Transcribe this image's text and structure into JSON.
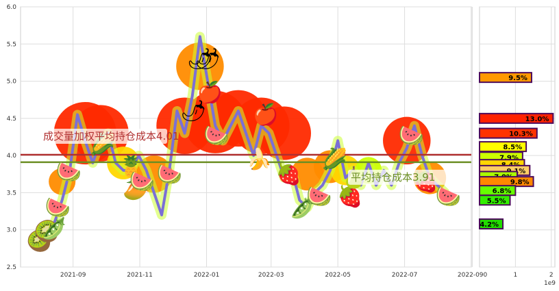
{
  "chart_data": [
    {
      "type": "line",
      "title": "",
      "xlabel": "",
      "ylabel": "",
      "ylim": [
        2.5,
        6.0
      ],
      "y_ticks": [
        "2.5",
        "3.0",
        "3.5",
        "4.0",
        "4.5",
        "5.0",
        "5.5",
        "6.0"
      ],
      "x_ticks": [
        "2021-09",
        "2021-11",
        "2022-01",
        "2022-03",
        "2022-05",
        "2022-07",
        "2022-09"
      ],
      "x_tick_display": [
        "2021-09",
        "2021-11",
        "2022-01",
        "2022-03",
        "2022-05",
        "2022-07",
        "2022-090"
      ],
      "xlim": [
        "2021-07-15",
        "2022-08-31"
      ],
      "grid": true,
      "line_color": "#7b6fd6",
      "price_series": {
        "x": [
          "2021-08-01",
          "2021-08-08",
          "2021-08-15",
          "2021-08-22",
          "2021-08-29",
          "2021-09-05",
          "2021-09-12",
          "2021-09-19",
          "2021-09-26",
          "2021-10-03",
          "2021-10-10",
          "2021-10-17",
          "2021-10-24",
          "2021-10-31",
          "2021-11-07",
          "2021-11-14",
          "2021-11-21",
          "2021-11-28",
          "2021-12-05",
          "2021-12-12",
          "2021-12-19",
          "2021-12-26",
          "2022-01-02",
          "2022-01-09",
          "2022-01-16",
          "2022-01-23",
          "2022-01-30",
          "2022-02-06",
          "2022-02-13",
          "2022-02-20",
          "2022-02-27",
          "2022-03-06",
          "2022-03-13",
          "2022-03-20",
          "2022-03-27",
          "2022-04-03",
          "2022-04-10",
          "2022-04-17",
          "2022-04-24",
          "2022-05-01",
          "2022-05-08",
          "2022-05-15",
          "2022-05-22",
          "2022-05-29",
          "2022-06-05",
          "2022-06-12",
          "2022-06-19",
          "2022-06-26",
          "2022-07-03",
          "2022-07-10",
          "2022-07-17",
          "2022-07-24",
          "2022-07-31",
          "2022-08-07"
        ],
        "y": [
          2.9,
          3.0,
          3.1,
          3.4,
          3.8,
          4.55,
          4.2,
          3.9,
          4.2,
          4.3,
          3.9,
          3.8,
          3.8,
          4.0,
          3.8,
          3.5,
          3.2,
          3.8,
          4.6,
          4.3,
          4.8,
          5.6,
          5.0,
          4.4,
          4.2,
          4.4,
          4.6,
          4.3,
          4.0,
          4.4,
          4.3,
          4.0,
          3.7,
          3.8,
          3.4,
          3.3,
          3.5,
          3.6,
          3.8,
          4.2,
          3.7,
          3.8,
          3.6,
          3.9,
          3.6,
          3.8,
          3.6,
          3.9,
          4.1,
          4.4,
          4.0,
          3.7,
          3.6,
          3.5
        ]
      },
      "reference_lines": [
        {
          "name": "成交量加权平均持仓成本",
          "value": 4.01,
          "color": "#b03030",
          "label": "成交量加权平均持仓成本4.01",
          "label_visible": "成交量加权",
          "label_suffix": "仓成本4.01"
        },
        {
          "name": "平均持仓成本",
          "value": 3.91,
          "color": "#6b8e23",
          "label": "平均持仓成本3.91",
          "label_visible": "平均持仓成本",
          "label_suffix": "91"
        }
      ],
      "volume_blobs": [
        {
          "x": "2021-08-22",
          "y": 3.65,
          "r": 0.18,
          "color": "#ff8c00"
        },
        {
          "x": "2021-09-12",
          "y": 4.3,
          "r": 0.42,
          "color": "#ff2a00"
        },
        {
          "x": "2021-09-26",
          "y": 4.3,
          "r": 0.38,
          "color": "#ff2a00"
        },
        {
          "x": "2021-10-17",
          "y": 3.9,
          "r": 0.22,
          "color": "#ffd700"
        },
        {
          "x": "2021-11-14",
          "y": 3.75,
          "r": 0.25,
          "color": "#ff8c00"
        },
        {
          "x": "2021-12-12",
          "y": 4.4,
          "r": 0.38,
          "color": "#ff2a00"
        },
        {
          "x": "2021-12-26",
          "y": 5.2,
          "r": 0.32,
          "color": "#ff8c00"
        },
        {
          "x": "2022-01-09",
          "y": 4.45,
          "r": 0.42,
          "color": "#ff2a00"
        },
        {
          "x": "2022-01-30",
          "y": 4.5,
          "r": 0.38,
          "color": "#ff2a00"
        },
        {
          "x": "2022-02-20",
          "y": 4.4,
          "r": 0.38,
          "color": "#ff2a00"
        },
        {
          "x": "2022-03-13",
          "y": 4.3,
          "r": 0.36,
          "color": "#ff2a00"
        },
        {
          "x": "2022-04-03",
          "y": 3.75,
          "r": 0.22,
          "color": "#ff8c00"
        },
        {
          "x": "2022-04-24",
          "y": 3.85,
          "r": 0.22,
          "color": "#ff8c00"
        },
        {
          "x": "2022-05-08",
          "y": 3.8,
          "r": 0.2,
          "color": "#ffd700"
        },
        {
          "x": "2022-05-29",
          "y": 3.8,
          "r": 0.18,
          "color": "#ccff00"
        },
        {
          "x": "2022-07-03",
          "y": 4.2,
          "r": 0.32,
          "color": "#ff2a00"
        },
        {
          "x": "2022-07-24",
          "y": 3.7,
          "r": 0.22,
          "color": "#ff8c00"
        }
      ],
      "fruits": [
        {
          "x": "2021-08-01",
          "y": 2.85,
          "icon": "kiwi",
          "glyph": "🥝"
        },
        {
          "x": "2021-08-08",
          "y": 2.98,
          "icon": "kiwi",
          "glyph": "🥝"
        },
        {
          "x": "2021-08-15",
          "y": 3.02,
          "icon": "pea",
          "glyph": "🫛"
        },
        {
          "x": "2021-08-18",
          "y": 3.3,
          "icon": "watermelon",
          "glyph": "🍉"
        },
        {
          "x": "2021-08-28",
          "y": 3.78,
          "icon": "watermelon-slice",
          "glyph": "🍉"
        },
        {
          "x": "2021-09-28",
          "y": 4.15,
          "icon": "corn",
          "glyph": "🌽"
        },
        {
          "x": "2021-10-24",
          "y": 3.85,
          "icon": "pineapple",
          "glyph": "🍍"
        },
        {
          "x": "2021-10-28",
          "y": 3.55,
          "icon": "mango",
          "glyph": "🥭"
        },
        {
          "x": "2021-11-03",
          "y": 3.65,
          "icon": "watermelon",
          "glyph": "🍉"
        },
        {
          "x": "2021-11-28",
          "y": 3.75,
          "icon": "watermelon-slice",
          "glyph": "🍉"
        },
        {
          "x": "2021-12-20",
          "y": 4.6,
          "icon": "radish",
          "glyph": "🌶"
        },
        {
          "x": "2021-12-26",
          "y": 5.3,
          "icon": "radish",
          "glyph": "🌶"
        },
        {
          "x": "2022-01-02",
          "y": 5.3,
          "icon": "radish",
          "glyph": "🌶"
        },
        {
          "x": "2022-01-04",
          "y": 4.85,
          "icon": "apple",
          "glyph": "🍎"
        },
        {
          "x": "2022-01-10",
          "y": 4.27,
          "icon": "watermelon-slice",
          "glyph": "🍉"
        },
        {
          "x": "2022-02-18",
          "y": 3.95,
          "icon": "banana",
          "glyph": "🍌"
        },
        {
          "x": "2022-02-24",
          "y": 4.55,
          "icon": "apple",
          "glyph": "🍎"
        },
        {
          "x": "2022-03-17",
          "y": 3.75,
          "icon": "strawberry",
          "glyph": "🍓"
        },
        {
          "x": "2022-03-30",
          "y": 3.3,
          "icon": "pea",
          "glyph": "🫛"
        },
        {
          "x": "2022-04-14",
          "y": 3.45,
          "icon": "watermelon",
          "glyph": "🍉"
        },
        {
          "x": "2022-04-28",
          "y": 3.95,
          "icon": "corn",
          "glyph": "🌽"
        },
        {
          "x": "2022-05-12",
          "y": 3.45,
          "icon": "strawberry",
          "glyph": "🍓"
        },
        {
          "x": "2022-05-16",
          "y": 3.7,
          "icon": "pear",
          "glyph": "🍐"
        },
        {
          "x": "2022-07-07",
          "y": 4.27,
          "icon": "watermelon-slice",
          "glyph": "🍉"
        },
        {
          "x": "2022-07-20",
          "y": 3.65,
          "icon": "strawberry",
          "glyph": "🍓"
        },
        {
          "x": "2022-08-10",
          "y": 3.45,
          "icon": "watermelon",
          "glyph": "🍉"
        }
      ]
    },
    {
      "type": "bar",
      "orientation": "horizontal",
      "xlabel": "",
      "x_ticks": [
        "1",
        "2"
      ],
      "x_tick_display": [
        "1",
        "2"
      ],
      "offset_label": "1e9",
      "xlim": [
        0,
        2.1
      ],
      "ylim": [
        2.5,
        6.0
      ],
      "bars": [
        {
          "y": 5.05,
          "value": 1.45,
          "label": "9.5%",
          "color": "#ff9900"
        },
        {
          "y": 4.5,
          "value": 2.05,
          "label": "13.0%",
          "color": "#ff2200"
        },
        {
          "y": 4.3,
          "value": 1.6,
          "label": "10.3%",
          "color": "#ff3300"
        },
        {
          "y": 4.12,
          "value": 1.3,
          "label": "8.5%",
          "color": "#ffff00"
        },
        {
          "y": 3.98,
          "value": 1.2,
          "label": "7.9%",
          "color": "#ccff00"
        },
        {
          "y": 3.88,
          "value": 1.25,
          "label": "8.4%",
          "color": "#ffd700"
        },
        {
          "y": 3.8,
          "value": 1.4,
          "label": "9.1%",
          "color": "#ffcc66"
        },
        {
          "y": 3.72,
          "value": 1.05,
          "label": "7.0%",
          "color": "#aaff00"
        },
        {
          "y": 3.65,
          "value": 1.5,
          "label": "9.8%",
          "color": "#ff8800"
        },
        {
          "y": 3.53,
          "value": 1.0,
          "label": "6.8%",
          "color": "#66ff00"
        },
        {
          "y": 3.4,
          "value": 0.85,
          "label": "5.5%",
          "color": "#33ee00"
        },
        {
          "y": 3.08,
          "value": 0.65,
          "label": "4.2%",
          "color": "#22dd00"
        }
      ]
    }
  ]
}
